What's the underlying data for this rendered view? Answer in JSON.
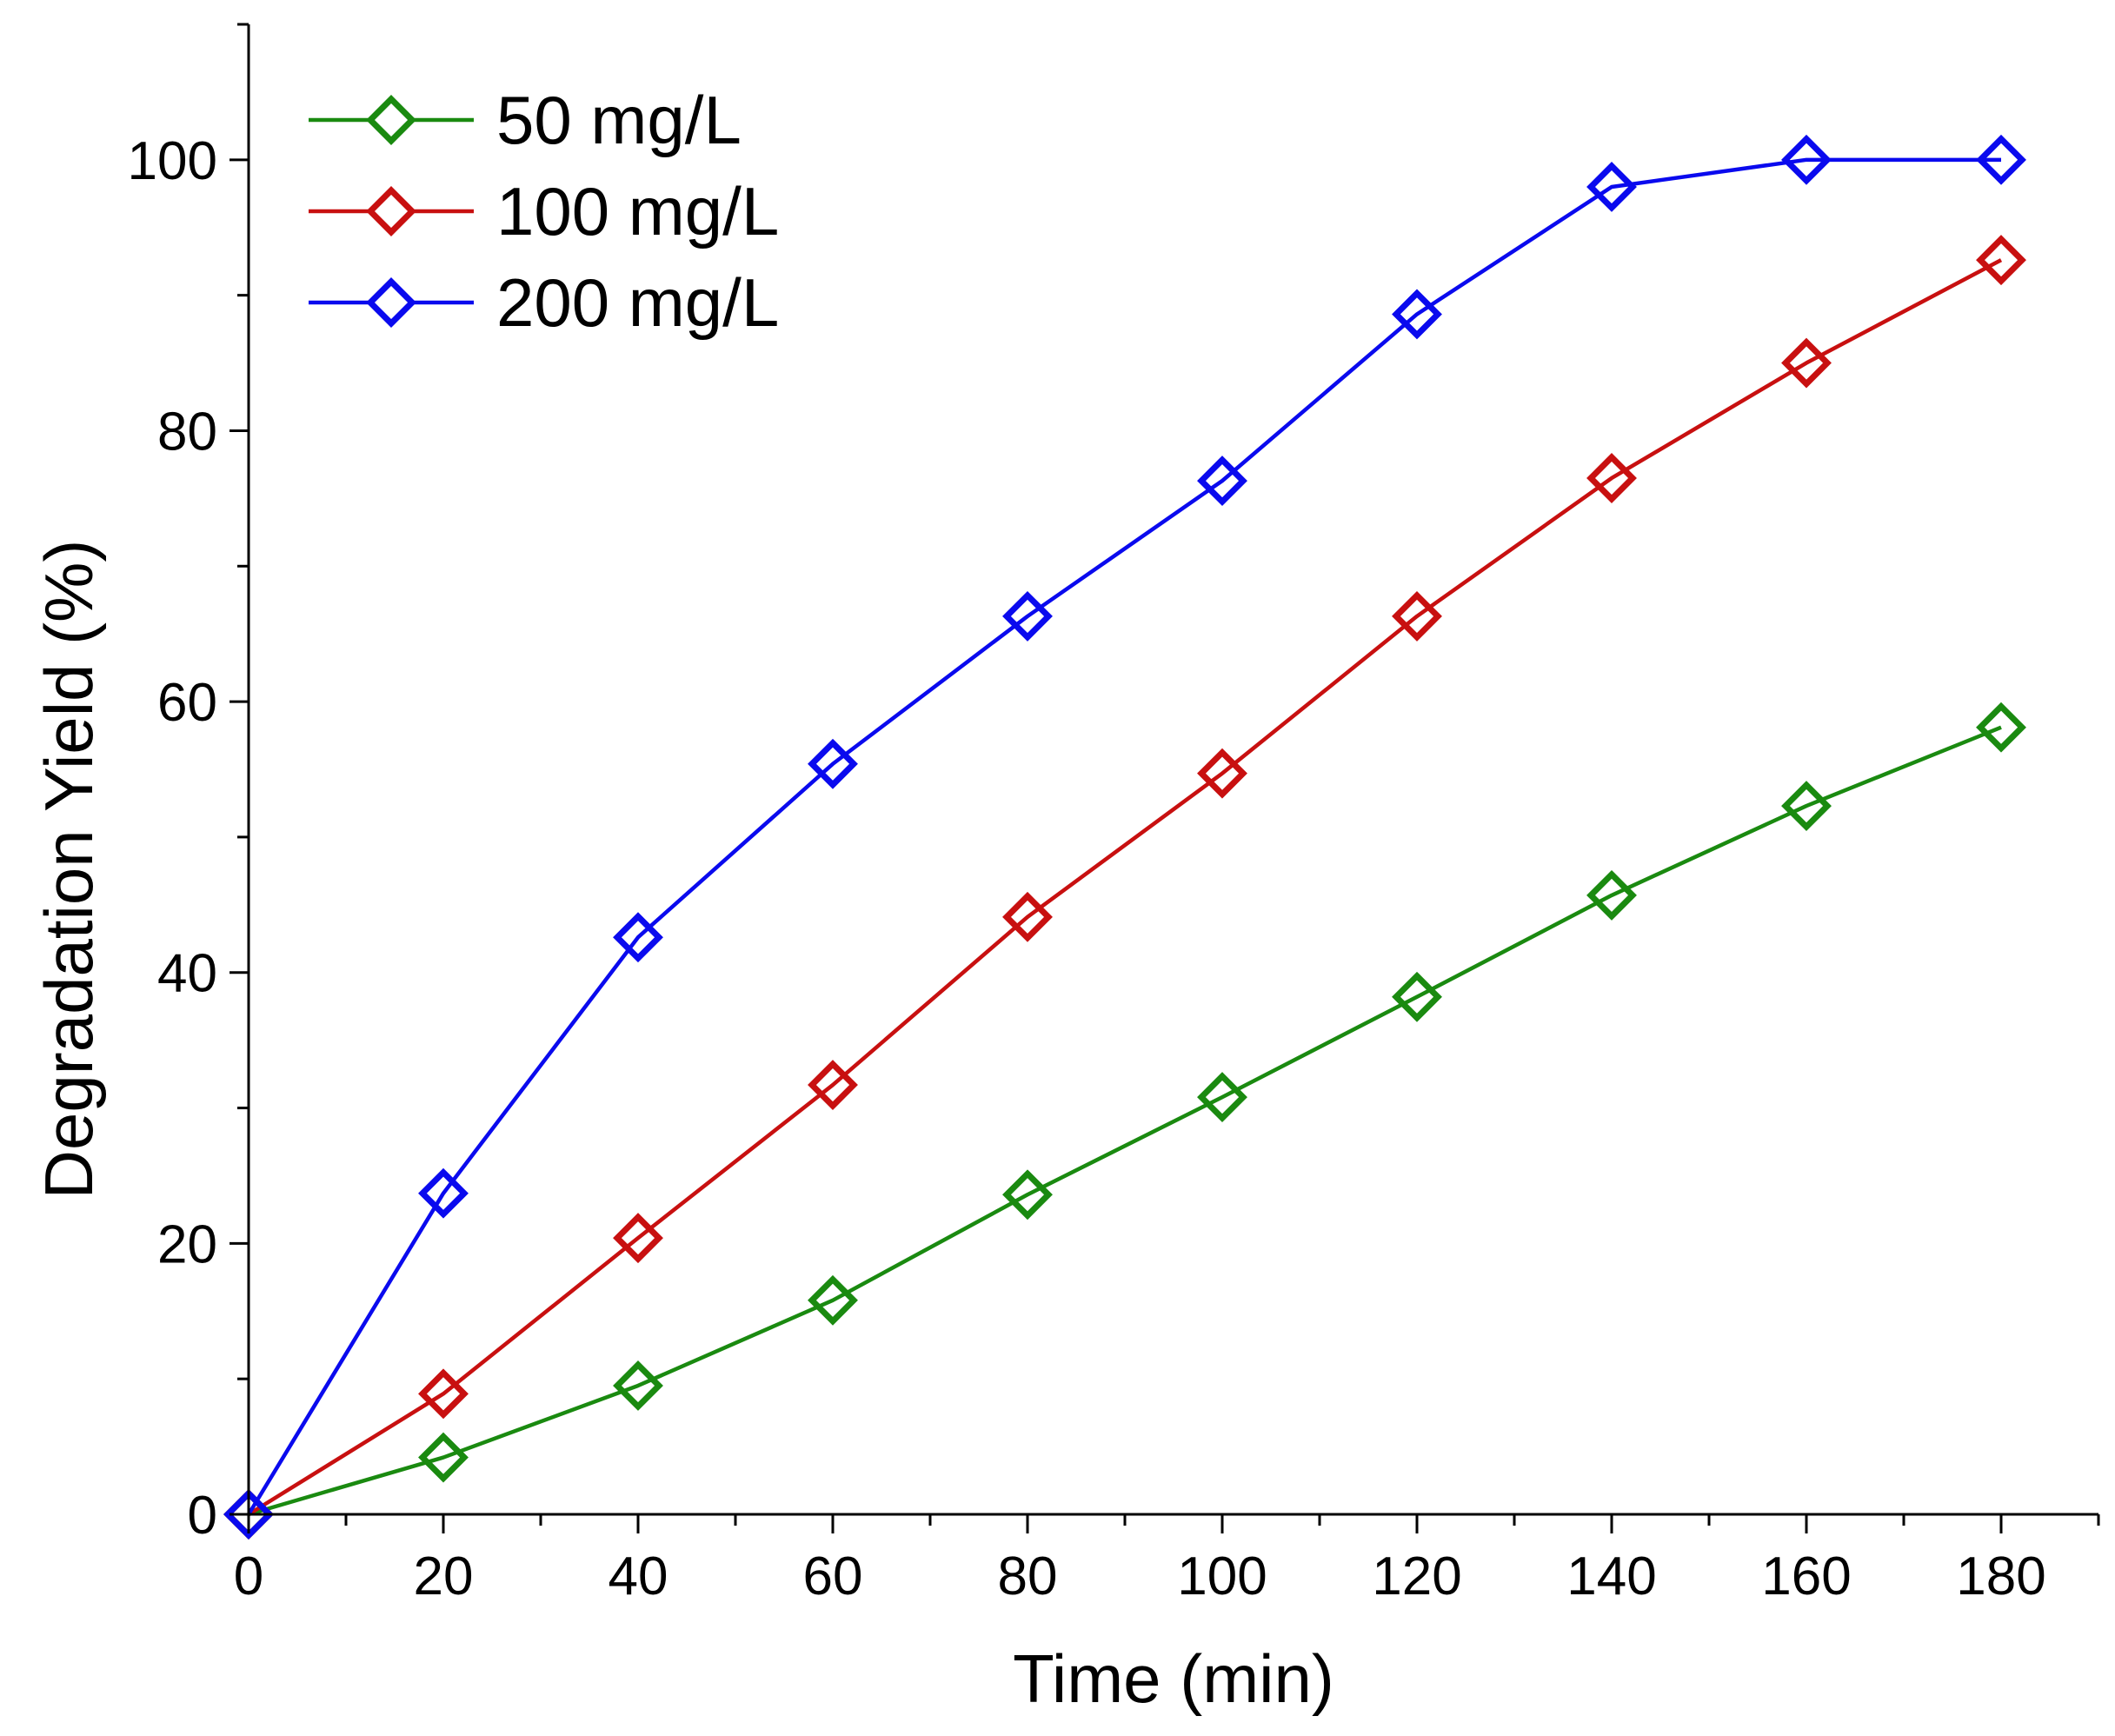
{
  "chart_data": {
    "type": "line",
    "title": "",
    "xlabel": "Time (min)",
    "ylabel": "Degradation Yield (%)",
    "xlim": [
      0,
      190
    ],
    "ylim": [
      0,
      110
    ],
    "xticks": [
      0,
      20,
      40,
      60,
      80,
      100,
      120,
      140,
      160,
      180
    ],
    "xtick_labels": [
      "0",
      "20",
      "40",
      "60",
      "80",
      "100",
      "120",
      "140",
      "160",
      "180"
    ],
    "yticks": [
      0,
      20,
      40,
      60,
      80,
      100
    ],
    "ytick_labels": [
      "0",
      "20",
      "40",
      "60",
      "80",
      "100"
    ],
    "x_minor_step": 10,
    "y_minor_step": 10,
    "grid": false,
    "legend_position": "top-left",
    "marker": "open-diamond",
    "x": [
      0,
      20,
      40,
      60,
      80,
      100,
      120,
      140,
      160,
      180
    ],
    "series": [
      {
        "name": "50 mg/L",
        "color": "#1a8a10",
        "values": [
          0,
          4.2,
          9.5,
          15.8,
          23.6,
          30.8,
          38.2,
          45.7,
          52.3,
          58.1
        ]
      },
      {
        "name": "100 mg/L",
        "color": "#c81010",
        "values": [
          0,
          8.9,
          20.4,
          31.7,
          44.1,
          54.7,
          66.3,
          76.5,
          85.0,
          92.6
        ]
      },
      {
        "name": "200 mg/L",
        "color": "#0a0aee",
        "values": [
          0,
          23.7,
          42.6,
          55.4,
          66.3,
          76.3,
          88.6,
          98.0,
          100.0,
          100.0
        ]
      }
    ]
  }
}
